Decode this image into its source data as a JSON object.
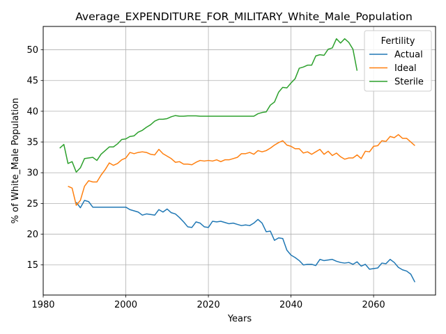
{
  "chart_data": {
    "type": "line",
    "title": "Average_EXPENDITURE_FOR_MILITARY_White_Male_Population",
    "xlabel": "Years",
    "ylabel": "% of White_Male Population",
    "xlim": [
      1980,
      2075
    ],
    "ylim": [
      10.1,
      53.8
    ],
    "xticks": [
      1980,
      2000,
      2020,
      2040,
      2060
    ],
    "yticks": [
      15,
      20,
      25,
      30,
      35,
      40,
      45,
      50
    ],
    "grid": true,
    "legend": {
      "title": "Fertility",
      "placement": "top-right"
    },
    "series": [
      {
        "name": "Actual",
        "color": "#1f77b4",
        "points": [
          [
            1988,
            25.2
          ],
          [
            1989,
            24.3
          ],
          [
            1990,
            25.5
          ],
          [
            1991,
            25.3
          ],
          [
            1992,
            24.4
          ],
          [
            1993,
            24.4
          ],
          [
            1994,
            24.4
          ],
          [
            1995,
            24.4
          ],
          [
            1996,
            24.4
          ],
          [
            1997,
            24.4
          ],
          [
            1998,
            24.4
          ],
          [
            1999,
            24.4
          ],
          [
            2000,
            24.4
          ],
          [
            2001,
            24.0
          ],
          [
            2002,
            23.8
          ],
          [
            2003,
            23.6
          ],
          [
            2004,
            23.1
          ],
          [
            2005,
            23.3
          ],
          [
            2006,
            23.2
          ],
          [
            2007,
            23.1
          ],
          [
            2008,
            24.0
          ],
          [
            2009,
            23.6
          ],
          [
            2010,
            24.1
          ],
          [
            2011,
            23.5
          ],
          [
            2012,
            23.3
          ],
          [
            2013,
            22.7
          ],
          [
            2014,
            22.0
          ],
          [
            2015,
            21.2
          ],
          [
            2016,
            21.1
          ],
          [
            2017,
            22.0
          ],
          [
            2018,
            21.8
          ],
          [
            2019,
            21.2
          ],
          [
            2020,
            21.1
          ],
          [
            2021,
            22.1
          ],
          [
            2022,
            22.0
          ],
          [
            2023,
            22.1
          ],
          [
            2024,
            21.9
          ],
          [
            2025,
            21.7
          ],
          [
            2026,
            21.8
          ],
          [
            2027,
            21.6
          ],
          [
            2028,
            21.4
          ],
          [
            2029,
            21.5
          ],
          [
            2030,
            21.4
          ],
          [
            2031,
            21.8
          ],
          [
            2032,
            22.4
          ],
          [
            2033,
            21.8
          ],
          [
            2034,
            20.4
          ],
          [
            2035,
            20.5
          ],
          [
            2036,
            19.0
          ],
          [
            2037,
            19.4
          ],
          [
            2038,
            19.3
          ],
          [
            2039,
            17.4
          ],
          [
            2040,
            16.6
          ],
          [
            2041,
            16.2
          ],
          [
            2042,
            15.7
          ],
          [
            2043,
            15.0
          ],
          [
            2044,
            15.1
          ],
          [
            2045,
            15.1
          ],
          [
            2046,
            14.9
          ],
          [
            2047,
            15.9
          ],
          [
            2048,
            15.7
          ],
          [
            2049,
            15.8
          ],
          [
            2050,
            15.9
          ],
          [
            2051,
            15.6
          ],
          [
            2052,
            15.4
          ],
          [
            2053,
            15.3
          ],
          [
            2054,
            15.4
          ],
          [
            2055,
            15.1
          ],
          [
            2056,
            15.5
          ],
          [
            2057,
            14.8
          ],
          [
            2058,
            15.1
          ],
          [
            2059,
            14.3
          ],
          [
            2060,
            14.4
          ],
          [
            2061,
            14.5
          ],
          [
            2062,
            15.3
          ],
          [
            2063,
            15.2
          ],
          [
            2064,
            15.9
          ],
          [
            2065,
            15.4
          ],
          [
            2066,
            14.6
          ],
          [
            2067,
            14.2
          ],
          [
            2068,
            14.0
          ],
          [
            2069,
            13.5
          ],
          [
            2070,
            12.2
          ]
        ]
      },
      {
        "name": "Ideal",
        "color": "#ff7f0e",
        "points": [
          [
            1986,
            27.8
          ],
          [
            1987,
            27.5
          ],
          [
            1988,
            24.7
          ],
          [
            1989,
            25.5
          ],
          [
            1990,
            27.8
          ],
          [
            1991,
            28.7
          ],
          [
            1992,
            28.5
          ],
          [
            1993,
            28.5
          ],
          [
            1994,
            29.6
          ],
          [
            1995,
            30.5
          ],
          [
            1996,
            31.6
          ],
          [
            1997,
            31.2
          ],
          [
            1998,
            31.5
          ],
          [
            1999,
            32.1
          ],
          [
            2000,
            32.4
          ],
          [
            2001,
            33.3
          ],
          [
            2002,
            33.1
          ],
          [
            2003,
            33.3
          ],
          [
            2004,
            33.4
          ],
          [
            2005,
            33.3
          ],
          [
            2006,
            33.0
          ],
          [
            2007,
            32.9
          ],
          [
            2008,
            33.8
          ],
          [
            2009,
            33.1
          ],
          [
            2010,
            32.7
          ],
          [
            2011,
            32.3
          ],
          [
            2012,
            31.7
          ],
          [
            2013,
            31.8
          ],
          [
            2014,
            31.4
          ],
          [
            2015,
            31.4
          ],
          [
            2016,
            31.3
          ],
          [
            2017,
            31.7
          ],
          [
            2018,
            32.0
          ],
          [
            2019,
            31.9
          ],
          [
            2020,
            32.0
          ],
          [
            2021,
            31.9
          ],
          [
            2022,
            32.1
          ],
          [
            2023,
            31.8
          ],
          [
            2024,
            32.1
          ],
          [
            2025,
            32.1
          ],
          [
            2026,
            32.3
          ],
          [
            2027,
            32.5
          ],
          [
            2028,
            33.1
          ],
          [
            2029,
            33.1
          ],
          [
            2030,
            33.3
          ],
          [
            2031,
            33.0
          ],
          [
            2032,
            33.6
          ],
          [
            2033,
            33.4
          ],
          [
            2034,
            33.6
          ],
          [
            2035,
            34.0
          ],
          [
            2036,
            34.5
          ],
          [
            2037,
            34.9
          ],
          [
            2038,
            35.2
          ],
          [
            2039,
            34.5
          ],
          [
            2040,
            34.3
          ],
          [
            2041,
            33.9
          ],
          [
            2042,
            33.9
          ],
          [
            2043,
            33.2
          ],
          [
            2044,
            33.4
          ],
          [
            2045,
            33.0
          ],
          [
            2046,
            33.4
          ],
          [
            2047,
            33.8
          ],
          [
            2048,
            33.0
          ],
          [
            2049,
            33.5
          ],
          [
            2050,
            32.8
          ],
          [
            2051,
            33.2
          ],
          [
            2052,
            32.6
          ],
          [
            2053,
            32.2
          ],
          [
            2054,
            32.4
          ],
          [
            2055,
            32.4
          ],
          [
            2056,
            32.9
          ],
          [
            2057,
            32.3
          ],
          [
            2058,
            33.5
          ],
          [
            2059,
            33.4
          ],
          [
            2060,
            34.3
          ],
          [
            2061,
            34.4
          ],
          [
            2062,
            35.2
          ],
          [
            2063,
            35.1
          ],
          [
            2064,
            35.9
          ],
          [
            2065,
            35.7
          ],
          [
            2066,
            36.2
          ],
          [
            2067,
            35.6
          ],
          [
            2068,
            35.6
          ],
          [
            2069,
            35.0
          ],
          [
            2070,
            34.4
          ]
        ]
      },
      {
        "name": "Sterile",
        "color": "#2ca02c",
        "points": [
          [
            1984,
            34.0
          ],
          [
            1985,
            34.6
          ],
          [
            1986,
            31.5
          ],
          [
            1987,
            31.8
          ],
          [
            1988,
            30.1
          ],
          [
            1989,
            30.8
          ],
          [
            1990,
            32.3
          ],
          [
            1991,
            32.4
          ],
          [
            1992,
            32.5
          ],
          [
            1993,
            32.0
          ],
          [
            1994,
            33.0
          ],
          [
            1995,
            33.6
          ],
          [
            1996,
            34.2
          ],
          [
            1997,
            34.2
          ],
          [
            1998,
            34.7
          ],
          [
            1999,
            35.4
          ],
          [
            2000,
            35.5
          ],
          [
            2001,
            35.9
          ],
          [
            2002,
            36.0
          ],
          [
            2003,
            36.6
          ],
          [
            2004,
            36.9
          ],
          [
            2005,
            37.4
          ],
          [
            2006,
            37.8
          ],
          [
            2007,
            38.4
          ],
          [
            2008,
            38.7
          ],
          [
            2009,
            38.7
          ],
          [
            2010,
            38.8
          ],
          [
            2011,
            39.1
          ],
          [
            2012,
            39.3
          ],
          [
            2013,
            39.2
          ],
          [
            2014,
            39.2
          ],
          [
            2015,
            39.25
          ],
          [
            2016,
            39.25
          ],
          [
            2017,
            39.25
          ],
          [
            2018,
            39.2
          ],
          [
            2019,
            39.2
          ],
          [
            2020,
            39.2
          ],
          [
            2021,
            39.2
          ],
          [
            2022,
            39.2
          ],
          [
            2023,
            39.2
          ],
          [
            2024,
            39.2
          ],
          [
            2025,
            39.2
          ],
          [
            2026,
            39.2
          ],
          [
            2027,
            39.2
          ],
          [
            2028,
            39.2
          ],
          [
            2029,
            39.2
          ],
          [
            2030,
            39.2
          ],
          [
            2031,
            39.2
          ],
          [
            2032,
            39.6
          ],
          [
            2033,
            39.8
          ],
          [
            2034,
            39.9
          ],
          [
            2035,
            41.0
          ],
          [
            2036,
            41.5
          ],
          [
            2037,
            43.1
          ],
          [
            2038,
            43.9
          ],
          [
            2039,
            43.8
          ],
          [
            2040,
            44.6
          ],
          [
            2041,
            45.3
          ],
          [
            2042,
            47.0
          ],
          [
            2043,
            47.2
          ],
          [
            2044,
            47.5
          ],
          [
            2045,
            47.5
          ],
          [
            2046,
            49.0
          ],
          [
            2047,
            49.2
          ],
          [
            2048,
            49.1
          ],
          [
            2049,
            50.1
          ],
          [
            2050,
            50.3
          ],
          [
            2051,
            51.8
          ],
          [
            2052,
            51.1
          ],
          [
            2053,
            51.8
          ],
          [
            2054,
            51.2
          ],
          [
            2055,
            50.1
          ],
          [
            2056,
            46.6
          ]
        ]
      }
    ]
  }
}
